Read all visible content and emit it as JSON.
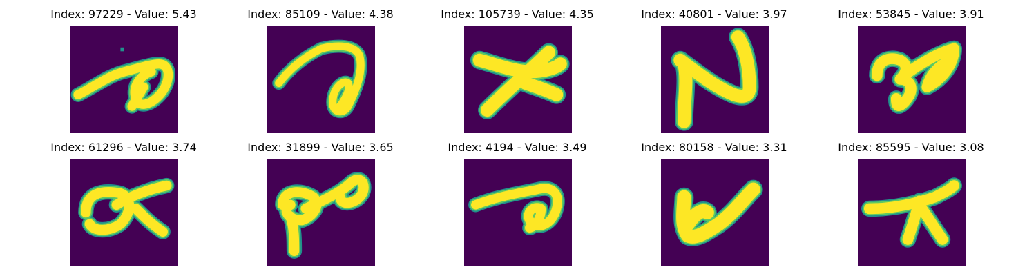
{
  "colors": {
    "background": "#440154",
    "stroke_core": "#fde725",
    "stroke_mid": "#5ec962",
    "stroke_edge": "#21918c"
  },
  "panels": [
    {
      "index": "97229",
      "value": "5.43",
      "title": "Index: 97229 - Value: 5.43",
      "glyph": "curl-a"
    },
    {
      "index": "85109",
      "value": "4.38",
      "title": "Index: 85109 - Value: 4.38",
      "glyph": "curl-b"
    },
    {
      "index": "105739",
      "value": "4.35",
      "title": "Index: 105739 - Value: 4.35",
      "glyph": "cross"
    },
    {
      "index": "40801",
      "value": "3.97",
      "title": "Index: 40801 - Value: 3.97",
      "glyph": "zigzag"
    },
    {
      "index": "53845",
      "value": "3.91",
      "title": "Index: 53845 - Value: 3.91",
      "glyph": "loop-three"
    },
    {
      "index": "61296",
      "value": "3.74",
      "title": "Index: 61296 - Value: 3.74",
      "glyph": "loop-k"
    },
    {
      "index": "31899",
      "value": "3.65",
      "title": "Index: 31899 - Value: 3.65",
      "glyph": "double-loop"
    },
    {
      "index": "4194",
      "value": "3.49",
      "title": "Index: 4194 - Value: 3.49",
      "glyph": "curl-c"
    },
    {
      "index": "80158",
      "value": "3.31",
      "title": "Index: 80158 - Value: 3.31",
      "glyph": "check"
    },
    {
      "index": "85595",
      "value": "3.08",
      "title": "Index: 85595 - Value: 3.08",
      "glyph": "lambda"
    }
  ]
}
